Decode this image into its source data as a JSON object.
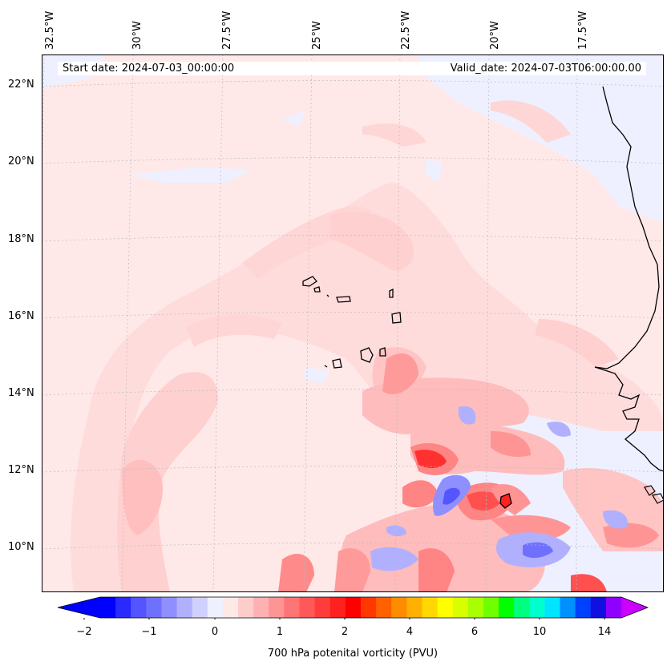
{
  "header": {
    "start_date": "Start date: 2024-07-03_00:00:00",
    "valid_date": "Valid_date: 2024-07-03T06:00:00.00"
  },
  "axes": {
    "longitude_labels": [
      "32.5°W",
      "30°W",
      "27.5°W",
      "25°W",
      "22.5°W",
      "20°W",
      "17.5°W"
    ],
    "latitude_labels": [
      "22°N",
      "20°N",
      "18°N",
      "16°N",
      "14°N",
      "12°N",
      "10°N"
    ],
    "gridlines": true
  },
  "colorbar": {
    "label": "700 hPa potenital vorticity (PVU)",
    "tick_labels": [
      "−2",
      "−1",
      "0",
      "1",
      "2",
      "4",
      "6",
      "10",
      "14"
    ],
    "extend": "both",
    "colors": [
      "#0000ff",
      "#2a2aff",
      "#5555ff",
      "#7070ff",
      "#8f8fff",
      "#b0b0ff",
      "#d0d0ff",
      "#eef0ff",
      "#ffe8e8",
      "#ffcccc",
      "#ffb0b0",
      "#ff9494",
      "#ff7474",
      "#ff5858",
      "#ff3c3c",
      "#ff2020",
      "#ff0000",
      "#ff3800",
      "#ff6000",
      "#ff8c00",
      "#ffb000",
      "#ffd800",
      "#ffff00",
      "#d8ff00",
      "#a8ff00",
      "#70ff00",
      "#00ff00",
      "#00ff80",
      "#00ffcc",
      "#00e4ff",
      "#0090ff",
      "#0040ff",
      "#1010e0",
      "#9000ff"
    ],
    "under_color": "#0000ff",
    "over_color": "#cc00ff"
  },
  "colors": {
    "background_field": "#ffe8e8",
    "negative_field": "#eef0ff",
    "coastline": "#000000"
  }
}
